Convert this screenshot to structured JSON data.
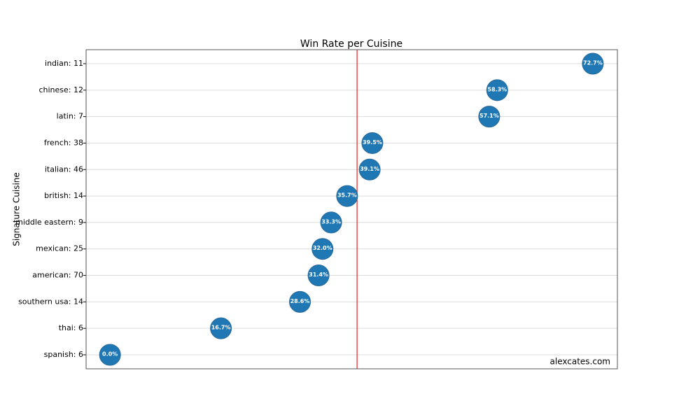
{
  "chart_data": {
    "type": "dot",
    "title": "Win Rate per Cuisine",
    "y_label": "Signature Cuisine",
    "annotation": "alexcates.com",
    "categories": [
      "indian: 11",
      "chinese: 12",
      "latin: 7",
      "french: 38",
      "italian: 46",
      "british: 14",
      "middle eastern: 9",
      "mexican: 25",
      "american: 70",
      "southern usa: 14",
      "thai: 6",
      "spanish: 6"
    ],
    "values": [
      72.7,
      58.3,
      57.1,
      39.5,
      39.1,
      35.7,
      33.3,
      32.0,
      31.4,
      28.6,
      16.7,
      0.0
    ],
    "value_labels": [
      "72.7%",
      "58.3%",
      "57.1%",
      "39.5%",
      "39.1%",
      "35.7%",
      "33.3%",
      "32.0%",
      "31.4%",
      "28.6%",
      "16.7%",
      "0.0%"
    ],
    "color": "#1f77b4",
    "reference_line": 37.2,
    "reference_color": "#e8231f",
    "xlim": [
      -3.6,
      76.4
    ],
    "grid": true
  }
}
